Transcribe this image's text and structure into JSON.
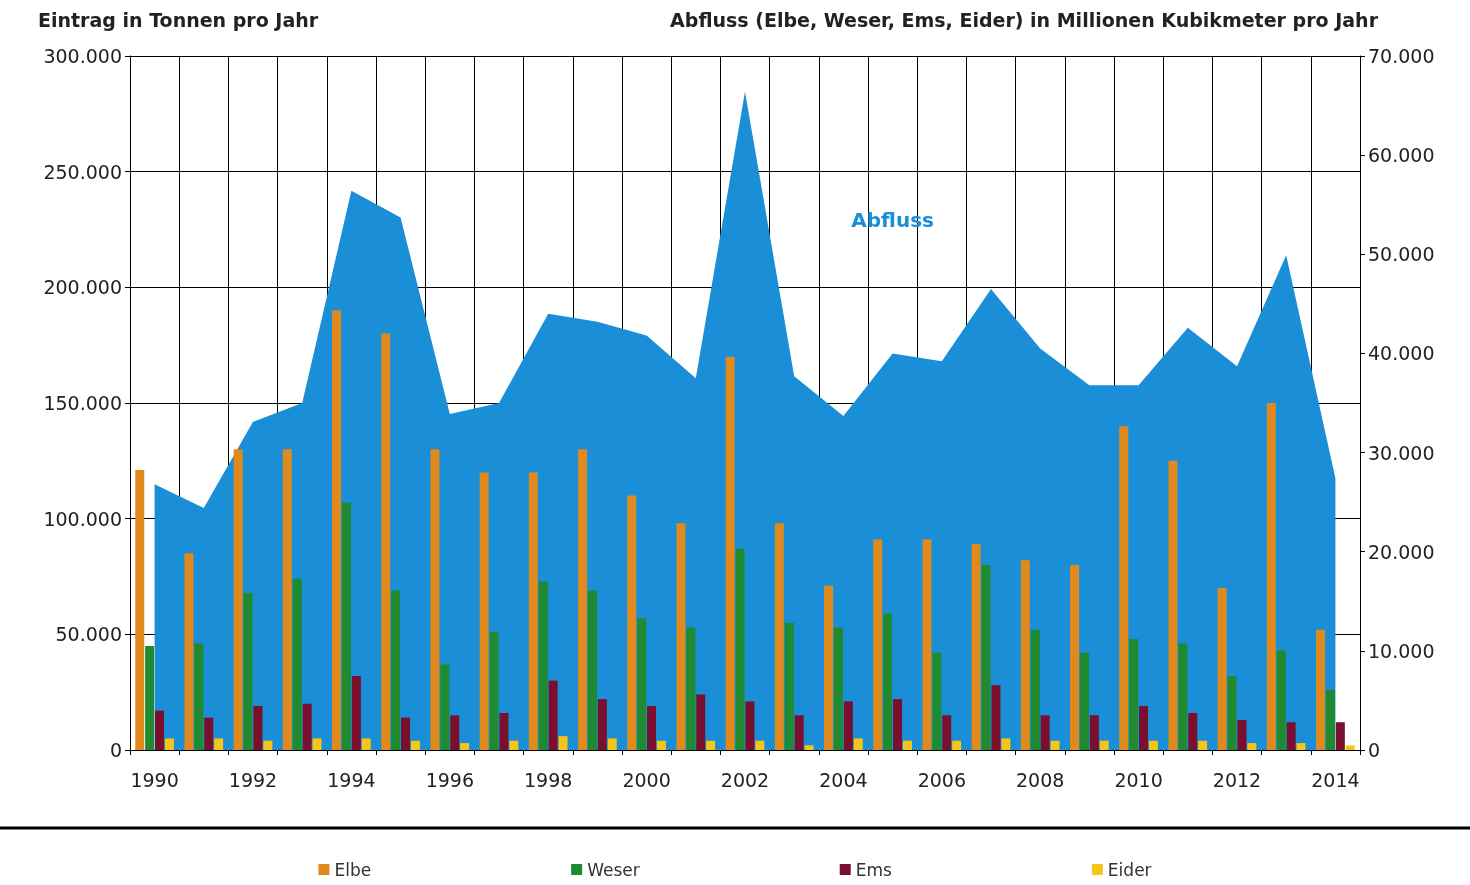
{
  "chart_data": {
    "type": "bar",
    "ylabel": "Eintrag in Tonnen pro Jahr",
    "y2label": "Abfluss (Elbe, Weser, Ems, Eider) in Millionen Kubikmeter pro Jahr",
    "categories": [
      "1990",
      null,
      "1992",
      null,
      "1994",
      null,
      "1996",
      null,
      "1998",
      null,
      "2000",
      null,
      "2002",
      null,
      "2004",
      null,
      "2006",
      null,
      "2008",
      null,
      "2010",
      null,
      "2012",
      null,
      "2014"
    ],
    "series": [
      {
        "name": "Abfluss",
        "type": "area",
        "axis": "y2",
        "color": "#1a8fd8",
        "values": [
          26800,
          24400,
          33100,
          35000,
          56400,
          53700,
          33900,
          35000,
          44000,
          43200,
          41800,
          37500,
          66400,
          37700,
          33700,
          40000,
          39200,
          46500,
          40500,
          36800,
          36800,
          42600,
          38700,
          49900,
          27400
        ]
      },
      {
        "name": "Elbe",
        "color": "#e08a1e",
        "values": [
          121000,
          85000,
          130000,
          130000,
          190000,
          180000,
          130000,
          120000,
          120000,
          130000,
          110000,
          98000,
          170000,
          98000,
          71000,
          91000,
          91000,
          89000,
          82000,
          80000,
          140000,
          125000,
          70000,
          150000,
          52000
        ]
      },
      {
        "name": "Weser",
        "color": "#1f8a2f",
        "values": [
          45000,
          46000,
          68000,
          74000,
          107000,
          69000,
          37000,
          51000,
          73000,
          69000,
          57000,
          53000,
          87000,
          55000,
          53000,
          59000,
          42000,
          80000,
          52000,
          42000,
          48000,
          46000,
          32000,
          43000,
          26000
        ]
      },
      {
        "name": "Ems",
        "color": "#7a0f2e",
        "values": [
          17000,
          14000,
          19000,
          20000,
          32000,
          14000,
          15000,
          16000,
          30000,
          22000,
          19000,
          24000,
          21000,
          15000,
          21000,
          22000,
          15000,
          28000,
          15000,
          15000,
          19000,
          16000,
          13000,
          12000,
          12000
        ]
      },
      {
        "name": "Eider",
        "color": "#f5c518",
        "values": [
          5000,
          5000,
          4000,
          5000,
          5000,
          4000,
          3000,
          4000,
          6000,
          5000,
          4000,
          4000,
          4000,
          2000,
          5000,
          4000,
          4000,
          5000,
          4000,
          4000,
          4000,
          4000,
          3000,
          3000,
          2000
        ]
      }
    ],
    "ylim": [
      0,
      300000
    ],
    "yticks": [
      {
        "value": 0,
        "label": "0"
      },
      {
        "value": 50000,
        "label": "50.000"
      },
      {
        "value": 100000,
        "label": "100.000"
      },
      {
        "value": 150000,
        "label": "150.000"
      },
      {
        "value": 200000,
        "label": "200.000"
      },
      {
        "value": 250000,
        "label": "250.000"
      },
      {
        "value": 300000,
        "label": "300.000"
      }
    ],
    "y2lim": [
      0,
      70000
    ],
    "y2ticks": [
      {
        "value": 0,
        "label": "0"
      },
      {
        "value": 10000,
        "label": "10.000"
      },
      {
        "value": 20000,
        "label": "20.000"
      },
      {
        "value": 30000,
        "label": "30.000"
      },
      {
        "value": 40000,
        "label": "40.000"
      },
      {
        "value": 50000,
        "label": "50.000"
      },
      {
        "value": 60000,
        "label": "60.000"
      },
      {
        "value": 70000,
        "label": "70.000"
      }
    ],
    "tick_labels": "xy",
    "grid": true,
    "legend": "bottom"
  }
}
